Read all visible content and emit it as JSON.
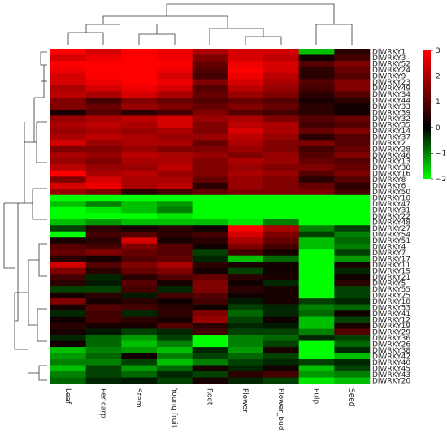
{
  "chart_data": {
    "type": "heatmap",
    "columns": [
      "Leaf",
      "Pericarp",
      "Stem",
      "Young fruit",
      "Root",
      "Flower",
      "Flower_bud",
      "Pulp",
      "Seed"
    ],
    "rows": [
      "DlWRKY1",
      "DlWRKY3",
      "DlWRKY52",
      "DlWRKY24",
      "DlWRKY9",
      "DlWRKY23",
      "DlWRKY49",
      "DlWRKY34",
      "DlWRKY44",
      "DlWRKY33",
      "DlWRKY39",
      "DlWRKY32",
      "DlWRKY35",
      "DlWRKY14",
      "DlWRKY37",
      "DlWRKY2",
      "DlWRKY28",
      "DlWRKY46",
      "DlWRKY13",
      "DlWRKY30",
      "DlWRKY16",
      "DlWRKY8",
      "DlWRKY6",
      "DlWRKY50",
      "DlWRKY10",
      "DlWRKY47",
      "DlWRKY31",
      "DlWRKY22",
      "DlWRKY48",
      "DlWRKY27",
      "DlWRKY54",
      "DlWRKY51",
      "DlWRKY4",
      "DlWRKY7",
      "DlWRKY17",
      "DlWRKY11",
      "DlWRKY15",
      "DlWRKY21",
      "DlWRKY5",
      "DlWRKY55",
      "DlWRKY25",
      "DlWRKY18",
      "DlWRKY53",
      "DlWRKY41",
      "DlWRKY12",
      "DlWRKY19",
      "DlWRKY29",
      "DlWRKY36",
      "DlWRKY26",
      "DlWRKY38",
      "DlWRKY42",
      "DlWRKY40",
      "DlWRKY45",
      "DlWRKY43",
      "DlWRKY20"
    ],
    "values": [
      [
        3,
        2.5,
        3,
        2.8,
        2,
        2.5,
        2.5,
        -1.5,
        0.5
      ],
      [
        2.5,
        2.8,
        3,
        2.8,
        1.5,
        2.5,
        2.2,
        0.2,
        0.8
      ],
      [
        3,
        3,
        3,
        3,
        1.2,
        2.8,
        2.5,
        1,
        1.5
      ],
      [
        2.8,
        3,
        3,
        2.8,
        1,
        3,
        2.5,
        0.5,
        1.2
      ],
      [
        2.5,
        3,
        3,
        2.5,
        0.8,
        2.8,
        2.2,
        0.5,
        1
      ],
      [
        2.5,
        2.8,
        3,
        2.8,
        1.5,
        2.5,
        2,
        1,
        1.5
      ],
      [
        2,
        2.5,
        2.8,
        2.5,
        1,
        2.2,
        1.8,
        0.8,
        1.5
      ],
      [
        2.2,
        2,
        2.5,
        2,
        1.2,
        1.8,
        1.5,
        0.5,
        1
      ],
      [
        1.5,
        0.8,
        1.5,
        1.2,
        1,
        1.2,
        1,
        0.3,
        0.5
      ],
      [
        1.5,
        1.2,
        1.8,
        1.5,
        1.2,
        1.5,
        1.2,
        0.5,
        0.2
      ],
      [
        0.3,
        1,
        0.5,
        0.8,
        1.5,
        1,
        0.8,
        0.5,
        0.2
      ],
      [
        1.8,
        2,
        2.2,
        2.5,
        1.8,
        2,
        1.5,
        1,
        1.2
      ],
      [
        2,
        2.2,
        2,
        2.5,
        1.5,
        2.2,
        2,
        0.8,
        1
      ],
      [
        1.8,
        2,
        1.8,
        2,
        1.5,
        2.5,
        2,
        1.2,
        1.5
      ],
      [
        2,
        2.2,
        2,
        1.8,
        1.8,
        2.2,
        1.8,
        0.5,
        1
      ],
      [
        2.5,
        1.8,
        2,
        2,
        1.2,
        2,
        1.5,
        1.5,
        1
      ],
      [
        1.5,
        1.5,
        1.8,
        1.5,
        1.5,
        1.8,
        1.5,
        0.8,
        1.2
      ],
      [
        2,
        1.8,
        2.2,
        2,
        1.8,
        1.5,
        1.8,
        1,
        1.5
      ],
      [
        1.8,
        1.5,
        2,
        2,
        1.5,
        2,
        1.8,
        1.2,
        1
      ],
      [
        2.2,
        1.8,
        1.8,
        2.2,
        1.5,
        1.8,
        1.5,
        1.5,
        1.2
      ],
      [
        3,
        2,
        2.2,
        1.8,
        1.5,
        2,
        1.8,
        1,
        1.5
      ],
      [
        1.5,
        2.5,
        2,
        2,
        1.2,
        1.8,
        1.5,
        0.5,
        1
      ],
      [
        2.5,
        2.8,
        2,
        2.2,
        0.5,
        1.8,
        1.5,
        1.2,
        0.5
      ],
      [
        1.8,
        1.5,
        0.5,
        0.8,
        1.2,
        1.5,
        1.5,
        1.5,
        0.8
      ],
      [
        -2,
        -2,
        -2,
        -2,
        -2,
        -2,
        -2,
        -2,
        -2
      ],
      [
        -1.5,
        -1,
        -1.5,
        -1.2,
        -2,
        -2,
        -2,
        -2,
        -2
      ],
      [
        -2,
        -1.8,
        -1.5,
        -1,
        -2,
        -2,
        -2,
        -2,
        -2
      ],
      [
        -2,
        -2,
        -2,
        -1.8,
        -2,
        -2,
        -2,
        -2,
        -2
      ],
      [
        -1.5,
        -1.2,
        -1.5,
        -1.5,
        -1.5,
        -1.8,
        -1,
        -2,
        -2
      ],
      [
        -0.5,
        0.5,
        0.3,
        0.5,
        0.2,
        3,
        2,
        -1,
        -0.5
      ],
      [
        -2,
        0.8,
        1,
        0.5,
        0.8,
        2.5,
        1.5,
        -0.5,
        -1
      ],
      [
        0.3,
        0.5,
        2.5,
        0.3,
        0.5,
        2,
        1.2,
        -1.5,
        -0.8
      ],
      [
        1,
        0.8,
        1.5,
        1,
        0.2,
        1.5,
        0.8,
        -1.5,
        -1
      ],
      [
        1.2,
        1.5,
        1.2,
        1,
        -0.5,
        0.8,
        0.3,
        -2,
        -0.5
      ],
      [
        0.5,
        0.3,
        1,
        1.2,
        -0.3,
        -1.5,
        -0.8,
        -2,
        -1.2
      ],
      [
        2.5,
        1,
        1.5,
        2,
        0.5,
        0.3,
        0.2,
        -2,
        0.3
      ],
      [
        1.5,
        0.5,
        1.2,
        1.5,
        0.3,
        -0.5,
        0.2,
        -2,
        -0.3
      ],
      [
        0.8,
        -0.3,
        0.5,
        1,
        1.2,
        0.5,
        0.3,
        -2,
        0.2
      ],
      [
        0.5,
        -0.2,
        1,
        0.3,
        1.5,
        0.2,
        -0.3,
        -2,
        0.5
      ],
      [
        -0.5,
        -0.5,
        0.8,
        -0.3,
        1.5,
        0.5,
        0.3,
        -2,
        -0.5
      ],
      [
        0.3,
        0.5,
        -0.2,
        0.8,
        1,
        0.2,
        0.3,
        -2,
        -0.5
      ],
      [
        1.5,
        0.3,
        0.5,
        0.2,
        0.8,
        -0.2,
        0.3,
        -0.5,
        -0.3
      ],
      [
        0.3,
        1,
        0.8,
        0.5,
        0.2,
        -0.5,
        -0.3,
        -1,
        -0.8
      ],
      [
        -0.3,
        0.8,
        -0.3,
        0.5,
        1.5,
        -0.8,
        -0.3,
        -0.8,
        0.2
      ],
      [
        0.2,
        0.8,
        0.5,
        0.3,
        1.8,
        -0.5,
        0.2,
        -1.5,
        -0.5
      ],
      [
        0.5,
        0.3,
        0.3,
        1,
        0.5,
        -0.3,
        -0.2,
        -1.5,
        0.3
      ],
      [
        0.3,
        -0.2,
        -0.5,
        -0.3,
        0.8,
        -0.5,
        -0.5,
        -1,
        1
      ],
      [
        -0.3,
        -0.8,
        -1.2,
        -0.5,
        -2,
        -1,
        -0.8,
        -0.3,
        -0.5
      ],
      [
        0.2,
        -0.8,
        -1.5,
        -1,
        -2,
        -1,
        -0.5,
        -2,
        -0.8
      ],
      [
        -1.5,
        -1,
        -1.2,
        -1.5,
        -0.3,
        -1.2,
        0.3,
        -2,
        -0.3
      ],
      [
        -1.2,
        -0.8,
        0.2,
        -1,
        -0.5,
        -0.8,
        -0.5,
        -2,
        -1.5
      ],
      [
        -1,
        -1,
        -0.5,
        -1.5,
        -1,
        -0.5,
        -0.3,
        -0.5,
        -0.3
      ],
      [
        -1.5,
        -0.5,
        -1.2,
        -0.8,
        0.3,
        -0.3,
        0.2,
        -1.5,
        -0.5
      ],
      [
        -1,
        -0.5,
        -0.8,
        -0.3,
        -0.5,
        0.5,
        0.8,
        -1.2,
        -1
      ],
      [
        -0.8,
        -0.3,
        -0.2,
        -0.5,
        0.3,
        -0.3,
        -0.5,
        -1.8,
        -1.5
      ]
    ],
    "clim": [
      -2,
      3
    ],
    "cticks": [
      3,
      2,
      1,
      0,
      {
        "value": -1,
        "label": "−1"
      },
      {
        "value": -2,
        "label": "−2"
      }
    ],
    "colors": {
      "low": "#00ff00",
      "mid": "#000000",
      "high": "#ff0000"
    }
  }
}
